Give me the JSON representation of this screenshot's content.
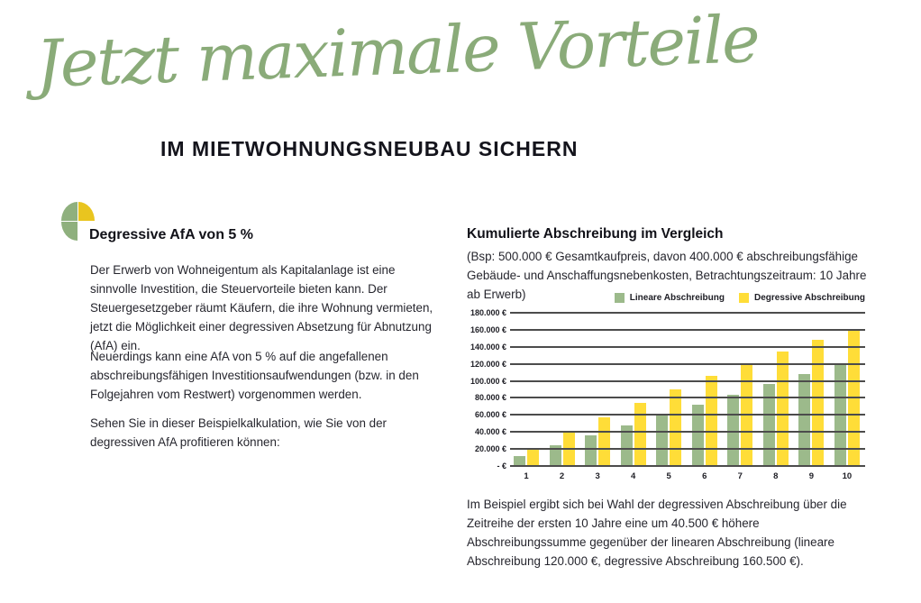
{
  "header": {
    "script_title": "Jetzt maximale Vorteile",
    "subtitle": "IM MIETWOHNUNGSNEUBAU SICHERN"
  },
  "left_column": {
    "icon": "leaf-flower-logo",
    "heading": "Degressive AfA von 5 %",
    "paragraphs": [
      "Der Erwerb von Wohneigentum als Kapitalanlage ist eine sinnvolle Investition, die Steuervorteile bieten kann. Der Steuergesetzgeber räumt Käufern, die ihre Wohnung vermieten, jetzt die Möglichkeit einer degressiven Absetzung für Abnutzung (AfA) ein.",
      "Neuerdings kann eine AfA von 5 % auf die angefallenen abschreibungsfähigen Investitionsaufwendungen (bzw. in den Folgejahren vom Restwert) vorgenommen werden.",
      "Sehen Sie in dieser Beispielkalkulation, wie Sie von der degressiven AfA profitieren können:"
    ]
  },
  "right_column": {
    "footnote": "Im Beispiel ergibt sich bei Wahl der degressiven Abschreibung über die Zeitreihe der ersten 10 Jahre eine um 40.500 € höhere Abschreibungssumme gegenüber der linearen Abschreibung (lineare Abschreibung 120.000 €, degressive Abschreibung 160.500 €)."
  },
  "chart_data": {
    "type": "bar",
    "title": "Kumulierte Abschreibung im Vergleich",
    "subtitle": "(Bsp: 500.000 € Gesamtkaufpreis, davon 400.000 € abschreibungsfähige Gebäude- und Anschaffungsnebenkosten, Betrachtungszeitraum: 10 Jahre ab Erwerb)",
    "categories": [
      "1",
      "2",
      "3",
      "4",
      "5",
      "6",
      "7",
      "8",
      "9",
      "10"
    ],
    "series": [
      {
        "name": "Lineare Abschreibung",
        "color": "#9cba8b",
        "values": [
          12000,
          24000,
          36000,
          48000,
          60000,
          72000,
          84000,
          96000,
          108000,
          120000
        ]
      },
      {
        "name": "Degressive Abschreibung",
        "color": "#ffdd38",
        "values": [
          20000,
          39000,
          57050,
          74200,
          90490,
          105965,
          120665,
          134630,
          147900,
          160500
        ]
      }
    ],
    "xlabel": "",
    "ylabel": "",
    "ylim": [
      0,
      180000
    ],
    "ytick_step": 20000,
    "yticks": [
      {
        "label": "180.000 €",
        "value": 180000
      },
      {
        "label": "160.000 €",
        "value": 160000
      },
      {
        "label": "140.000 €",
        "value": 140000
      },
      {
        "label": "120.000 €",
        "value": 120000
      },
      {
        "label": "100.000 €",
        "value": 100000
      },
      {
        "label": "80.000 €",
        "value": 80000
      },
      {
        "label": "60.000 €",
        "value": 60000
      },
      {
        "label": "40.000 €",
        "value": 40000
      },
      {
        "label": "20.000 €",
        "value": 20000
      },
      {
        "label": "- €",
        "value": 0
      }
    ],
    "grid": "horizontal",
    "legend_position": "top-right"
  },
  "colors": {
    "accent_green": "#8aab79",
    "logo_green": "#8fb07e",
    "logo_yellow": "#e9c51f",
    "bar_green": "#9cba8b",
    "bar_yellow": "#ffdd38",
    "gridline": "#4c4c4c",
    "text_dark": "#14141c"
  }
}
